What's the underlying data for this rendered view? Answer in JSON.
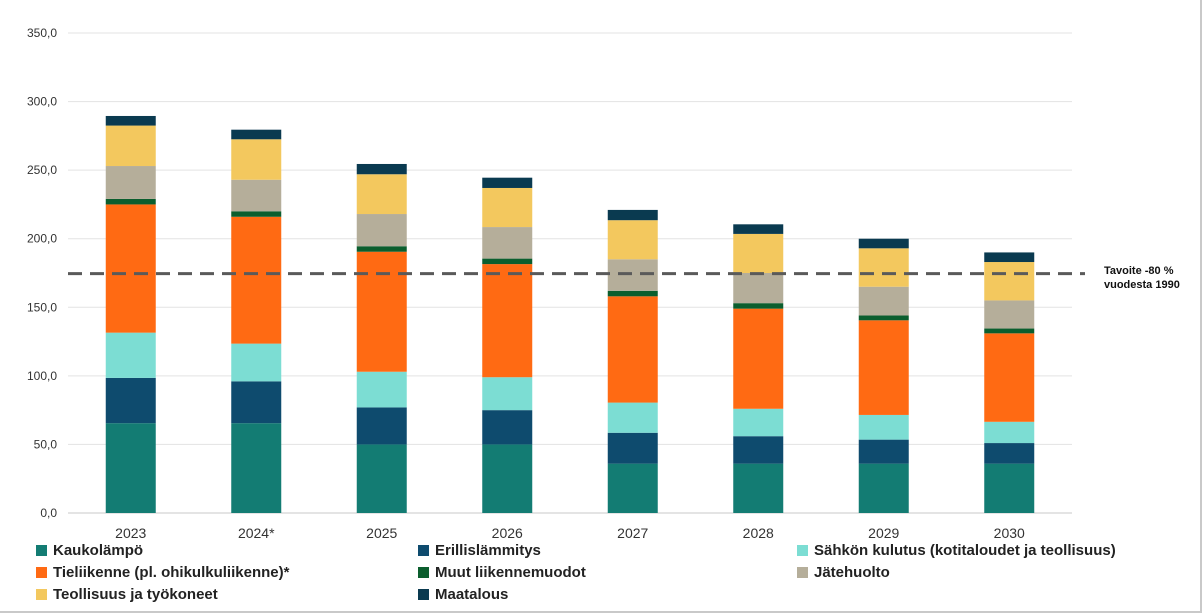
{
  "chart_data": {
    "type": "bar",
    "stacked": true,
    "title": "",
    "xlabel": "",
    "ylabel": "",
    "ylim": [
      0,
      350
    ],
    "yticks": [
      "0,0",
      "50,0",
      "100,0",
      "150,0",
      "200,0",
      "250,0",
      "300,0",
      "350,0"
    ],
    "grid": true,
    "legend_position": "bottom",
    "categories": [
      "2023",
      "2024*",
      "2025",
      "2026",
      "2027",
      "2028",
      "2029",
      "2030"
    ],
    "series": [
      {
        "name": "Kaukolämpö",
        "color": "#137C73",
        "values": [
          65.5,
          65.5,
          50.0,
          50.0,
          36.0,
          36.0,
          36.0,
          36.0
        ]
      },
      {
        "name": "Erillislämmitys",
        "color": "#0E4B6E",
        "values": [
          33.0,
          30.5,
          27.0,
          25.0,
          22.5,
          20.0,
          17.5,
          15.0
        ]
      },
      {
        "name": "Sähkön kulutus (kotitaloudet ja teollisuus)",
        "color": "#7CDDD3",
        "values": [
          33.0,
          27.5,
          26.0,
          24.0,
          22.0,
          20.0,
          18.0,
          15.5
        ]
      },
      {
        "name": "Tieliikenne (pl. ohikulkuliikenne)*",
        "color": "#FF6A13",
        "values": [
          93.5,
          92.5,
          87.5,
          82.5,
          77.5,
          73.0,
          69.0,
          64.5
        ]
      },
      {
        "name": "Muut liikennemuodot",
        "color": "#0B5E2E",
        "values": [
          4.0,
          4.0,
          4.0,
          4.0,
          4.0,
          4.0,
          3.5,
          3.5
        ]
      },
      {
        "name": "Jätehuolto",
        "color": "#B5AE9A",
        "values": [
          24.0,
          23.0,
          23.5,
          23.0,
          23.0,
          22.0,
          21.0,
          20.5
        ]
      },
      {
        "name": "Teollisuus ja työkoneet",
        "color": "#F3C85E",
        "values": [
          29.5,
          29.5,
          29.0,
          28.5,
          28.5,
          28.5,
          28.0,
          28.0
        ]
      },
      {
        "name": "Maatalous",
        "color": "#0A3A50",
        "values": [
          7.0,
          7.0,
          7.5,
          7.5,
          7.5,
          7.0,
          7.0,
          7.0
        ]
      }
    ],
    "target_line": {
      "value": 174.5,
      "label_line1": "Tavoite -80 %",
      "label_line2": "vuodesta 1990"
    }
  }
}
